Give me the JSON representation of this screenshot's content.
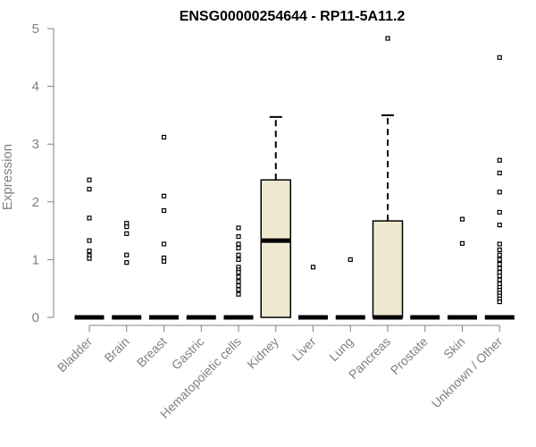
{
  "chart_data": {
    "type": "box",
    "title": "ENSG00000254644 - RP11-5A11.2",
    "xlabel": "",
    "ylabel": "Expression",
    "ylim": [
      0,
      5
    ],
    "yticks": [
      "0",
      "1",
      "2",
      "3",
      "4",
      "5"
    ],
    "grid": false,
    "box_fill": "#efe8d0",
    "categories": [
      "Bladder",
      "Brain",
      "Breast",
      "Gastric",
      "Hematopoietic cells",
      "Kidney",
      "Liver",
      "Lung",
      "Pancreas",
      "Prostate",
      "Skin",
      "Unknown / Other"
    ],
    "series": [
      {
        "category": "Bladder",
        "q1": 0,
        "median": 0,
        "q3": 0,
        "whisker_low": 0,
        "whisker_high": 0,
        "outliers": [
          2.38,
          2.22,
          1.72,
          1.33,
          1.15,
          1.07,
          1.02
        ]
      },
      {
        "category": "Brain",
        "q1": 0,
        "median": 0,
        "q3": 0,
        "whisker_low": 0,
        "whisker_high": 0,
        "outliers": [
          1.63,
          1.57,
          1.45,
          1.08,
          0.95
        ]
      },
      {
        "category": "Breast",
        "q1": 0,
        "median": 0,
        "q3": 0,
        "whisker_low": 0,
        "whisker_high": 0,
        "outliers": [
          3.12,
          2.1,
          1.85,
          1.27,
          1.03,
          0.97
        ]
      },
      {
        "category": "Gastric",
        "q1": 0,
        "median": 0,
        "q3": 0,
        "whisker_low": 0,
        "whisker_high": 0,
        "outliers": []
      },
      {
        "category": "Hematopoietic cells",
        "q1": 0,
        "median": 0,
        "q3": 0,
        "whisker_low": 0,
        "whisker_high": 0,
        "outliers": [
          1.55,
          1.4,
          1.27,
          1.2,
          1.08,
          1.0,
          0.87,
          0.82,
          0.78,
          0.7,
          0.62,
          0.55,
          0.48,
          0.4
        ]
      },
      {
        "category": "Kidney",
        "q1": 0,
        "median": 1.33,
        "q3": 2.38,
        "whisker_low": 0,
        "whisker_high": 3.47,
        "outliers": []
      },
      {
        "category": "Liver",
        "q1": 0,
        "median": 0,
        "q3": 0,
        "whisker_low": 0,
        "whisker_high": 0,
        "outliers": [
          0.87
        ]
      },
      {
        "category": "Lung",
        "q1": 0,
        "median": 0,
        "q3": 0,
        "whisker_low": 0,
        "whisker_high": 0,
        "outliers": [
          1.0
        ]
      },
      {
        "category": "Pancreas",
        "q1": 0,
        "median": 0,
        "q3": 1.67,
        "whisker_low": 0,
        "whisker_high": 3.5,
        "outliers": [
          4.83
        ]
      },
      {
        "category": "Prostate",
        "q1": 0,
        "median": 0,
        "q3": 0,
        "whisker_low": 0,
        "whisker_high": 0,
        "outliers": []
      },
      {
        "category": "Skin",
        "q1": 0,
        "median": 0,
        "q3": 0,
        "whisker_low": 0,
        "whisker_high": 0,
        "outliers": [
          1.7,
          1.28
        ]
      },
      {
        "category": "Unknown / Other",
        "q1": 0,
        "median": 0,
        "q3": 0,
        "whisker_low": 0,
        "whisker_high": 0,
        "outliers": [
          4.5,
          2.72,
          2.5,
          2.17,
          1.82,
          1.6,
          1.27,
          1.17,
          1.08,
          1.0,
          0.92,
          0.85,
          0.78,
          0.72,
          0.65,
          0.58,
          0.52,
          0.47,
          0.42,
          0.37,
          0.32,
          0.27
        ]
      }
    ]
  }
}
